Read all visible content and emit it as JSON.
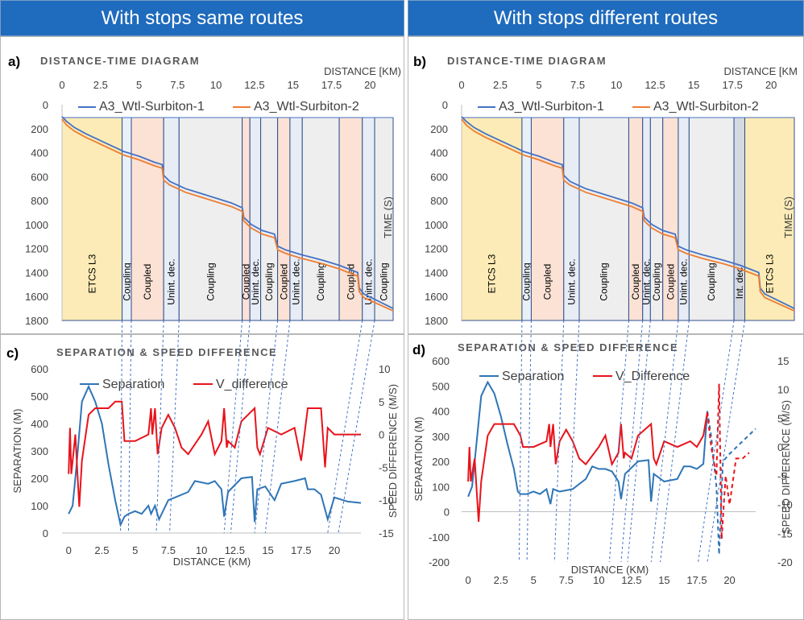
{
  "headers": {
    "left": "With stops same routes",
    "right": "With stops different routes"
  },
  "chart_data": [
    {
      "id": "a",
      "panel_label": "a)",
      "type": "line",
      "title": "DISTANCE-TIME DIAGRAM",
      "xlabel": "DISTANCE  [KM)",
      "ylabel": "TIME (S)",
      "xlim": [
        0,
        21.5
      ],
      "ylim": [
        0,
        1800
      ],
      "xticks": [
        "0",
        "2.5",
        "5",
        "7.5",
        "10",
        "12.5",
        "15",
        "17.5",
        "20"
      ],
      "yticks": [
        "0",
        "200",
        "400",
        "600",
        "800",
        "1000",
        "1200",
        "1400",
        "1600",
        "1800"
      ],
      "series": [
        {
          "name": "A3_Wtl-Surbiton-1",
          "color": "#4472c4",
          "x": [
            0,
            0.3,
            0.8,
            1.5,
            2.5,
            3.5,
            4.0,
            5.0,
            6.0,
            6.5,
            6.6,
            7.0,
            7.5,
            8.0,
            10.0,
            11.0,
            11.7,
            11.8,
            12.3,
            13.0,
            13.8,
            14.0,
            14.5,
            15.5,
            17.0,
            18.0,
            19.2,
            19.3,
            19.6,
            21.5
          ],
          "y": [
            100,
            140,
            190,
            240,
            300,
            360,
            390,
            430,
            480,
            500,
            590,
            640,
            670,
            700,
            780,
            820,
            860,
            940,
            1000,
            1050,
            1080,
            1180,
            1210,
            1250,
            1300,
            1340,
            1400,
            1530,
            1580,
            1700
          ]
        },
        {
          "name": "A3_Wtl-Surbiton-2",
          "color": "#ed7d31",
          "x": [
            0,
            0.3,
            0.8,
            1.5,
            2.5,
            3.5,
            4.0,
            5.0,
            6.0,
            6.5,
            6.6,
            7.0,
            7.5,
            8.0,
            10.0,
            11.0,
            11.7,
            11.8,
            12.3,
            13.0,
            13.8,
            14.0,
            14.5,
            15.5,
            17.0,
            18.0,
            19.2,
            19.3,
            19.6,
            21.5
          ],
          "y": [
            120,
            170,
            220,
            270,
            330,
            390,
            420,
            460,
            510,
            530,
            630,
            670,
            700,
            730,
            810,
            850,
            890,
            970,
            1030,
            1080,
            1110,
            1210,
            1240,
            1280,
            1330,
            1370,
            1430,
            1560,
            1610,
            1720
          ]
        }
      ],
      "regions": [
        {
          "x0": 0,
          "x1": 3.9,
          "label": "ETCS L3",
          "color": "#fcebb6"
        },
        {
          "x0": 3.9,
          "x1": 4.5,
          "label": "Coupling",
          "color": "#eaf0f8"
        },
        {
          "x0": 4.5,
          "x1": 6.6,
          "label": "Coupled",
          "color": "#fbe2d5"
        },
        {
          "x0": 6.6,
          "x1": 7.6,
          "label": "Unint. dec.",
          "color": "#e7ecf5"
        },
        {
          "x0": 7.6,
          "x1": 11.7,
          "label": "Coupling",
          "color": "#eeeeee"
        },
        {
          "x0": 11.7,
          "x1": 12.2,
          "label": "Coupled",
          "color": "#fbe2d5"
        },
        {
          "x0": 12.2,
          "x1": 12.9,
          "label": "Unint. dec.",
          "color": "#e7ecf5"
        },
        {
          "x0": 12.9,
          "x1": 14.0,
          "label": "Coupling",
          "color": "#eeeeee"
        },
        {
          "x0": 14.0,
          "x1": 14.8,
          "label": "Coupled",
          "color": "#fbe2d5"
        },
        {
          "x0": 14.8,
          "x1": 15.6,
          "label": "Unint. dec.",
          "color": "#e7ecf5"
        },
        {
          "x0": 15.6,
          "x1": 18.0,
          "label": "Coupling",
          "color": "#eeeeee"
        },
        {
          "x0": 18.0,
          "x1": 19.5,
          "label": "Coupled",
          "color": "#fbe2d5"
        },
        {
          "x0": 19.5,
          "x1": 20.3,
          "label": "Unint. dec.",
          "color": "#e7ecf5"
        },
        {
          "x0": 20.3,
          "x1": 21.5,
          "label": "Coupling",
          "color": "#eeeeee"
        }
      ],
      "legend": "top"
    },
    {
      "id": "b",
      "panel_label": "b)",
      "type": "line",
      "title": "DISTANCE-TIME DIAGRAM",
      "xlabel": "DISTANCE  [KM",
      "ylabel": "TIME (S)",
      "xlim": [
        0,
        21.5
      ],
      "ylim": [
        0,
        1800
      ],
      "xticks": [
        "0",
        "2.5",
        "5",
        "7.5",
        "10",
        "12.5",
        "15",
        "17.5",
        "20"
      ],
      "yticks": [
        "0",
        "200",
        "400",
        "600",
        "800",
        "1000",
        "1200",
        "1400",
        "1600",
        "1800"
      ],
      "series": [
        {
          "name": "A3_Wtl-Surbiton-1",
          "color": "#4472c4",
          "x": [
            0,
            0.3,
            0.8,
            1.5,
            2.5,
            3.5,
            4.0,
            5.0,
            6.0,
            6.5,
            6.6,
            7.0,
            7.5,
            8.0,
            10.0,
            11.0,
            11.7,
            11.8,
            12.3,
            13.0,
            13.8,
            14.0,
            14.5,
            15.5,
            17.0,
            18.0,
            19.2,
            19.3,
            19.6,
            21.5
          ],
          "y": [
            100,
            140,
            190,
            240,
            300,
            360,
            390,
            430,
            480,
            500,
            590,
            640,
            670,
            700,
            780,
            820,
            860,
            940,
            1000,
            1050,
            1080,
            1180,
            1210,
            1250,
            1300,
            1340,
            1400,
            1530,
            1580,
            1700
          ]
        },
        {
          "name": "A3_Wtl-Surbiton-2",
          "color": "#ed7d31",
          "x": [
            0,
            0.3,
            0.8,
            1.5,
            2.5,
            3.5,
            4.0,
            5.0,
            6.0,
            6.5,
            6.6,
            7.0,
            7.5,
            8.0,
            10.0,
            11.0,
            11.7,
            11.8,
            12.3,
            13.0,
            13.8,
            14.0,
            14.5,
            15.5,
            17.0,
            18.0,
            19.2,
            19.3,
            19.6,
            21.5
          ],
          "y": [
            120,
            170,
            220,
            270,
            330,
            390,
            420,
            460,
            510,
            530,
            630,
            670,
            700,
            730,
            810,
            850,
            890,
            970,
            1030,
            1080,
            1110,
            1210,
            1240,
            1280,
            1330,
            1370,
            1430,
            1560,
            1610,
            1720
          ]
        }
      ],
      "regions": [
        {
          "x0": 0,
          "x1": 3.9,
          "label": "ETCS L3",
          "color": "#fcebb6"
        },
        {
          "x0": 3.9,
          "x1": 4.5,
          "label": "Coupling",
          "color": "#eaf0f8"
        },
        {
          "x0": 4.5,
          "x1": 6.6,
          "label": "Coupled",
          "color": "#fbe2d5"
        },
        {
          "x0": 6.6,
          "x1": 7.6,
          "label": "Unint. dec.",
          "color": "#e7ecf5"
        },
        {
          "x0": 7.6,
          "x1": 10.8,
          "label": "Coupling",
          "color": "#eeeeee"
        },
        {
          "x0": 10.8,
          "x1": 11.7,
          "label": "Coupled",
          "color": "#fbe2d5"
        },
        {
          "x0": 11.7,
          "x1": 12.2,
          "label": "Unint. dec.",
          "color": "#e7ecf5"
        },
        {
          "x0": 12.2,
          "x1": 13.0,
          "label": "Coupling",
          "color": "#eeeeee"
        },
        {
          "x0": 13.0,
          "x1": 14.0,
          "label": "Coupled",
          "color": "#fbe2d5"
        },
        {
          "x0": 14.0,
          "x1": 14.7,
          "label": "Unint. dec.",
          "color": "#e7ecf5"
        },
        {
          "x0": 14.7,
          "x1": 17.6,
          "label": "Coupling",
          "color": "#eeeeee"
        },
        {
          "x0": 17.6,
          "x1": 18.3,
          "label": "Int. dec.",
          "color": "#d5d9e0"
        },
        {
          "x0": 18.3,
          "x1": 21.5,
          "label": "ETCS L3",
          "color": "#fcebb6"
        }
      ],
      "legend": "top"
    },
    {
      "id": "c",
      "panel_label": "c)",
      "type": "line",
      "title": "SEPARATION & SPEED DIFFERENCE",
      "xlabel": "DISTANCE (KM)",
      "ylabel": "SEPARATION (M)",
      "y2label": "SPEED DIFFERENCE (M/S)",
      "xlim": [
        -0.5,
        22
      ],
      "ylim": [
        0,
        600
      ],
      "y2lim": [
        -15,
        10
      ],
      "xticks": [
        "0",
        "2.5",
        "5",
        "7.5",
        "10",
        "12.5",
        "15",
        "17.5",
        "20"
      ],
      "yticks": [
        "0",
        "100",
        "200",
        "300",
        "400",
        "500",
        "600"
      ],
      "y2ticks": [
        "-15",
        "-10",
        "-5",
        "0",
        "5",
        "10"
      ],
      "series": [
        {
          "name": "Separation",
          "color": "#2e75b6",
          "axis": "left",
          "x": [
            0,
            0.3,
            0.6,
            1.0,
            1.5,
            2.0,
            2.5,
            3.0,
            3.5,
            3.9,
            4.2,
            4.5,
            5.0,
            5.5,
            6.0,
            6.2,
            6.5,
            6.8,
            7.5,
            8.0,
            9.0,
            9.5,
            10.5,
            11.0,
            11.5,
            11.7,
            12.0,
            13.0,
            13.8,
            14.0,
            14.2,
            14.8,
            15.5,
            16.0,
            17.0,
            17.8,
            18.0,
            18.5,
            19.0,
            19.5,
            20.0,
            21.0,
            22.0
          ],
          "y": [
            70,
            100,
            250,
            480,
            535,
            480,
            400,
            250,
            120,
            30,
            60,
            70,
            80,
            70,
            100,
            70,
            100,
            50,
            120,
            130,
            150,
            190,
            180,
            190,
            160,
            60,
            150,
            200,
            205,
            40,
            160,
            170,
            120,
            180,
            190,
            200,
            160,
            160,
            140,
            50,
            130,
            115,
            110
          ]
        },
        {
          "name": "V_difference",
          "color": "#e8131b",
          "axis": "right",
          "x": [
            0,
            0.1,
            0.2,
            0.5,
            0.8,
            1.0,
            1.5,
            2.0,
            2.5,
            3.0,
            3.5,
            4.0,
            4.2,
            4.3,
            5.0,
            6.0,
            6.2,
            6.3,
            6.5,
            6.7,
            7.0,
            7.5,
            8.0,
            8.5,
            9.0,
            10.0,
            10.5,
            11.0,
            11.5,
            11.7,
            11.9,
            12.0,
            12.5,
            13.0,
            14.0,
            14.2,
            14.4,
            15.0,
            16.0,
            17.0,
            17.5,
            18.0,
            19.0,
            19.3,
            19.5,
            20.0,
            21.0,
            22.0
          ],
          "y": [
            -6,
            1,
            -6,
            0,
            -11,
            -4,
            3,
            4,
            4,
            4,
            5,
            5,
            -1,
            -1,
            -1,
            0,
            4,
            0,
            4,
            -3,
            1,
            3,
            1,
            -2,
            -3,
            0,
            2,
            -3,
            -1,
            4,
            -2,
            -1,
            -2,
            2,
            4,
            -2,
            -3,
            1,
            0,
            1,
            -4,
            4,
            4,
            -5,
            1,
            0,
            0,
            0
          ]
        }
      ],
      "legend": "top"
    },
    {
      "id": "d",
      "panel_label": "d)",
      "type": "line",
      "title": "SEPARATION & SPEED DIFFERENCE",
      "xlabel": "DISTANCE (KM)",
      "ylabel": "SEPARATION (M)",
      "y2label": "SPEED DIFFERENCE (M/S)",
      "xlim": [
        -0.5,
        22
      ],
      "ylim": [
        -200,
        600
      ],
      "y2lim": [
        -20,
        15
      ],
      "xticks": [
        "0",
        "2.5",
        "5",
        "7.5",
        "10",
        "12.5",
        "15",
        "17.5",
        "20"
      ],
      "yticks": [
        "-200",
        "-100",
        "0",
        "100",
        "200",
        "300",
        "400",
        "500",
        "600"
      ],
      "y2ticks": [
        "-20",
        "-15",
        "-10",
        "-5",
        "0",
        "5",
        "10",
        "15"
      ],
      "series": [
        {
          "name": "Separation",
          "color": "#2e75b6",
          "axis": "left",
          "x": [
            0,
            0.3,
            0.6,
            1.0,
            1.5,
            2.0,
            2.5,
            3.0,
            3.5,
            3.8,
            4.0,
            4.5,
            5.0,
            5.5,
            6.0,
            6.3,
            6.5,
            7.0,
            8.0,
            9.0,
            9.5,
            10.0,
            10.5,
            11.0,
            11.5,
            11.7,
            12.0,
            13.0,
            13.8,
            14.0,
            14.2,
            15.0,
            16.0,
            16.5,
            17.0,
            17.5,
            18.0,
            18.3
          ],
          "y": [
            60,
            100,
            250,
            460,
            515,
            470,
            380,
            270,
            170,
            80,
            70,
            70,
            80,
            70,
            90,
            30,
            90,
            80,
            90,
            130,
            180,
            170,
            170,
            160,
            120,
            50,
            150,
            200,
            205,
            40,
            150,
            120,
            130,
            180,
            180,
            170,
            190,
            400
          ]
        },
        {
          "name": "Separation (dashed)",
          "color": "#2e75b6",
          "axis": "left",
          "dashed": true,
          "x": [
            18.3,
            18.6,
            19.0,
            19.2,
            19.5,
            20.0,
            21.0,
            22.0
          ],
          "y": [
            400,
            300,
            100,
            -170,
            200,
            230,
            280,
            330
          ]
        },
        {
          "name": "V_Difference",
          "color": "#e8131b",
          "axis": "right",
          "x": [
            0,
            0.1,
            0.2,
            0.5,
            0.8,
            1.0,
            1.5,
            2.0,
            2.5,
            3.0,
            3.5,
            4.0,
            4.2,
            4.5,
            5.0,
            6.0,
            6.2,
            6.3,
            6.5,
            6.7,
            7.0,
            7.5,
            8.0,
            8.5,
            9.0,
            10.0,
            10.5,
            11.0,
            11.5,
            11.7,
            11.9,
            12.0,
            12.5,
            13.0,
            14.0,
            14.2,
            14.4,
            15.0,
            16.0,
            17.0,
            17.5,
            18.0,
            18.3
          ],
          "y": [
            -6,
            0,
            -6,
            -2,
            -13,
            -6,
            2,
            4,
            4,
            4,
            4,
            2,
            0,
            0,
            0,
            1,
            4,
            0,
            4,
            -3,
            1,
            3,
            1,
            -2,
            -3,
            0,
            2,
            -3,
            -1,
            4,
            -2,
            -1,
            -2,
            2,
            4,
            -2,
            -3,
            1,
            0,
            1,
            0,
            2,
            6
          ]
        },
        {
          "name": "V_Difference (dashed)",
          "color": "#e8131b",
          "axis": "right",
          "dashed": true,
          "x": [
            18.3,
            18.6,
            19.0,
            19.2,
            19.4,
            19.7,
            20.0,
            20.5,
            21.0,
            21.5
          ],
          "y": [
            6,
            0,
            -5,
            11,
            -16,
            -5,
            -10,
            -2,
            -2,
            -1
          ]
        }
      ],
      "legend": "top"
    }
  ],
  "shared_dividers": {
    "left": [
      3.9,
      4.5,
      6.6,
      7.6,
      11.7,
      12.2,
      14.0,
      14.8,
      19.5,
      20.3
    ],
    "right": [
      3.9,
      4.5,
      6.6,
      7.6,
      10.8,
      11.7,
      12.2,
      14.0,
      14.7,
      17.6,
      18.3
    ]
  }
}
